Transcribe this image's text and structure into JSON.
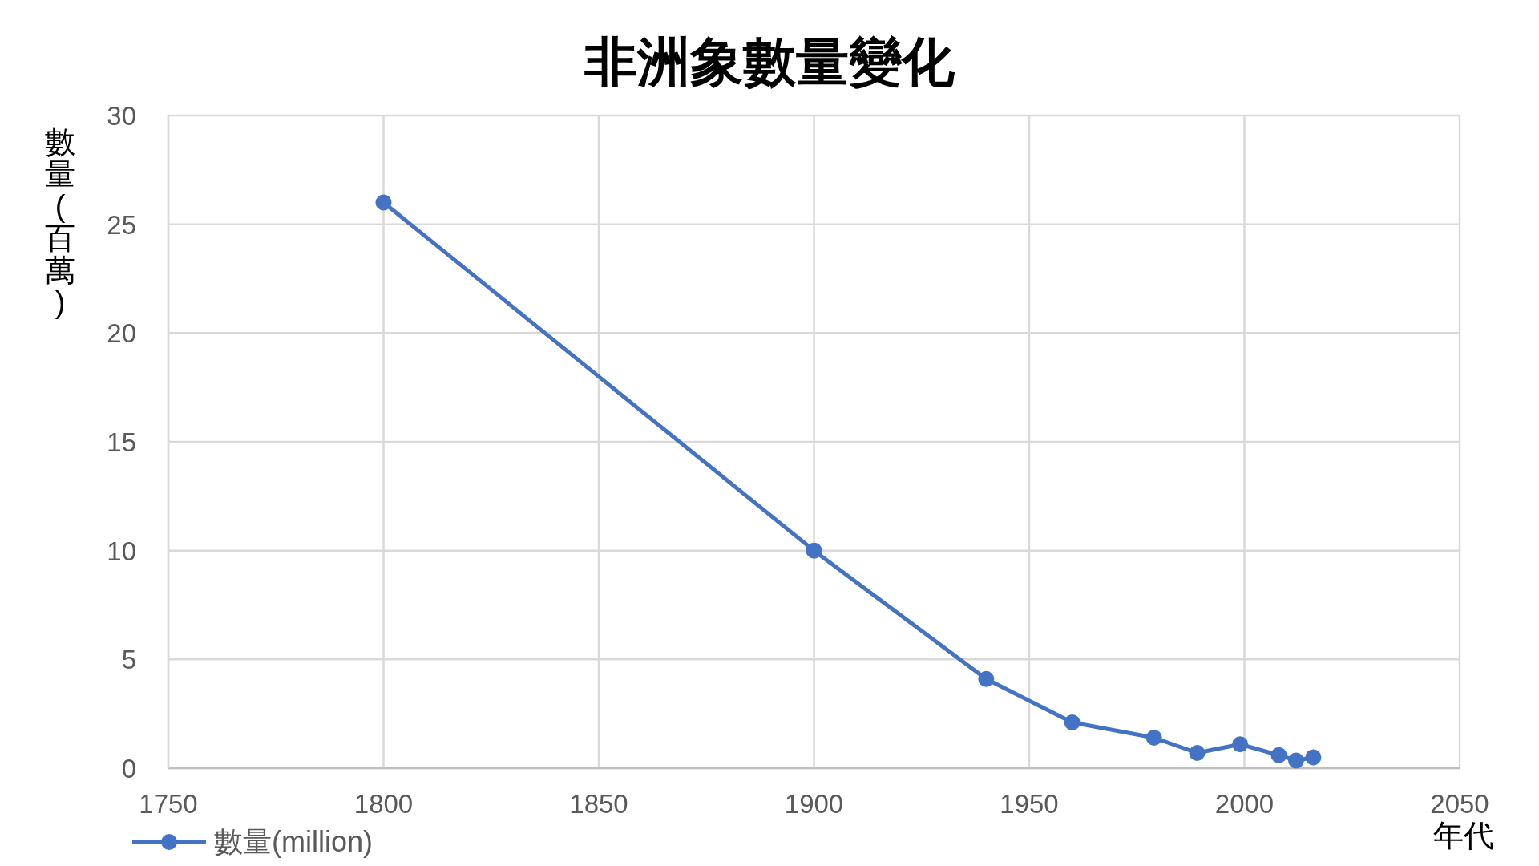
{
  "chart_data": {
    "type": "line",
    "title": "非洲象數量變化",
    "xlabel": "年代",
    "ylabel": "數量(百萬)",
    "x": [
      1800,
      1900,
      1940,
      1960,
      1979,
      1989,
      1999,
      2008,
      2012,
      2016
    ],
    "series": [
      {
        "name": "數量(million)",
        "color": "#4472c4",
        "values": [
          26,
          10,
          4.1,
          2.1,
          1.4,
          0.7,
          1.1,
          0.6,
          0.35,
          0.5
        ]
      }
    ],
    "xlim": [
      1750,
      2050
    ],
    "xticks": [
      1750,
      1800,
      1850,
      1900,
      1950,
      2000,
      2050
    ],
    "ylim": [
      0,
      30
    ],
    "yticks": [
      0,
      5,
      10,
      15,
      20,
      25,
      30
    ],
    "grid": true,
    "legend": "bottom left",
    "marker": "circle",
    "line_style": "solid"
  }
}
